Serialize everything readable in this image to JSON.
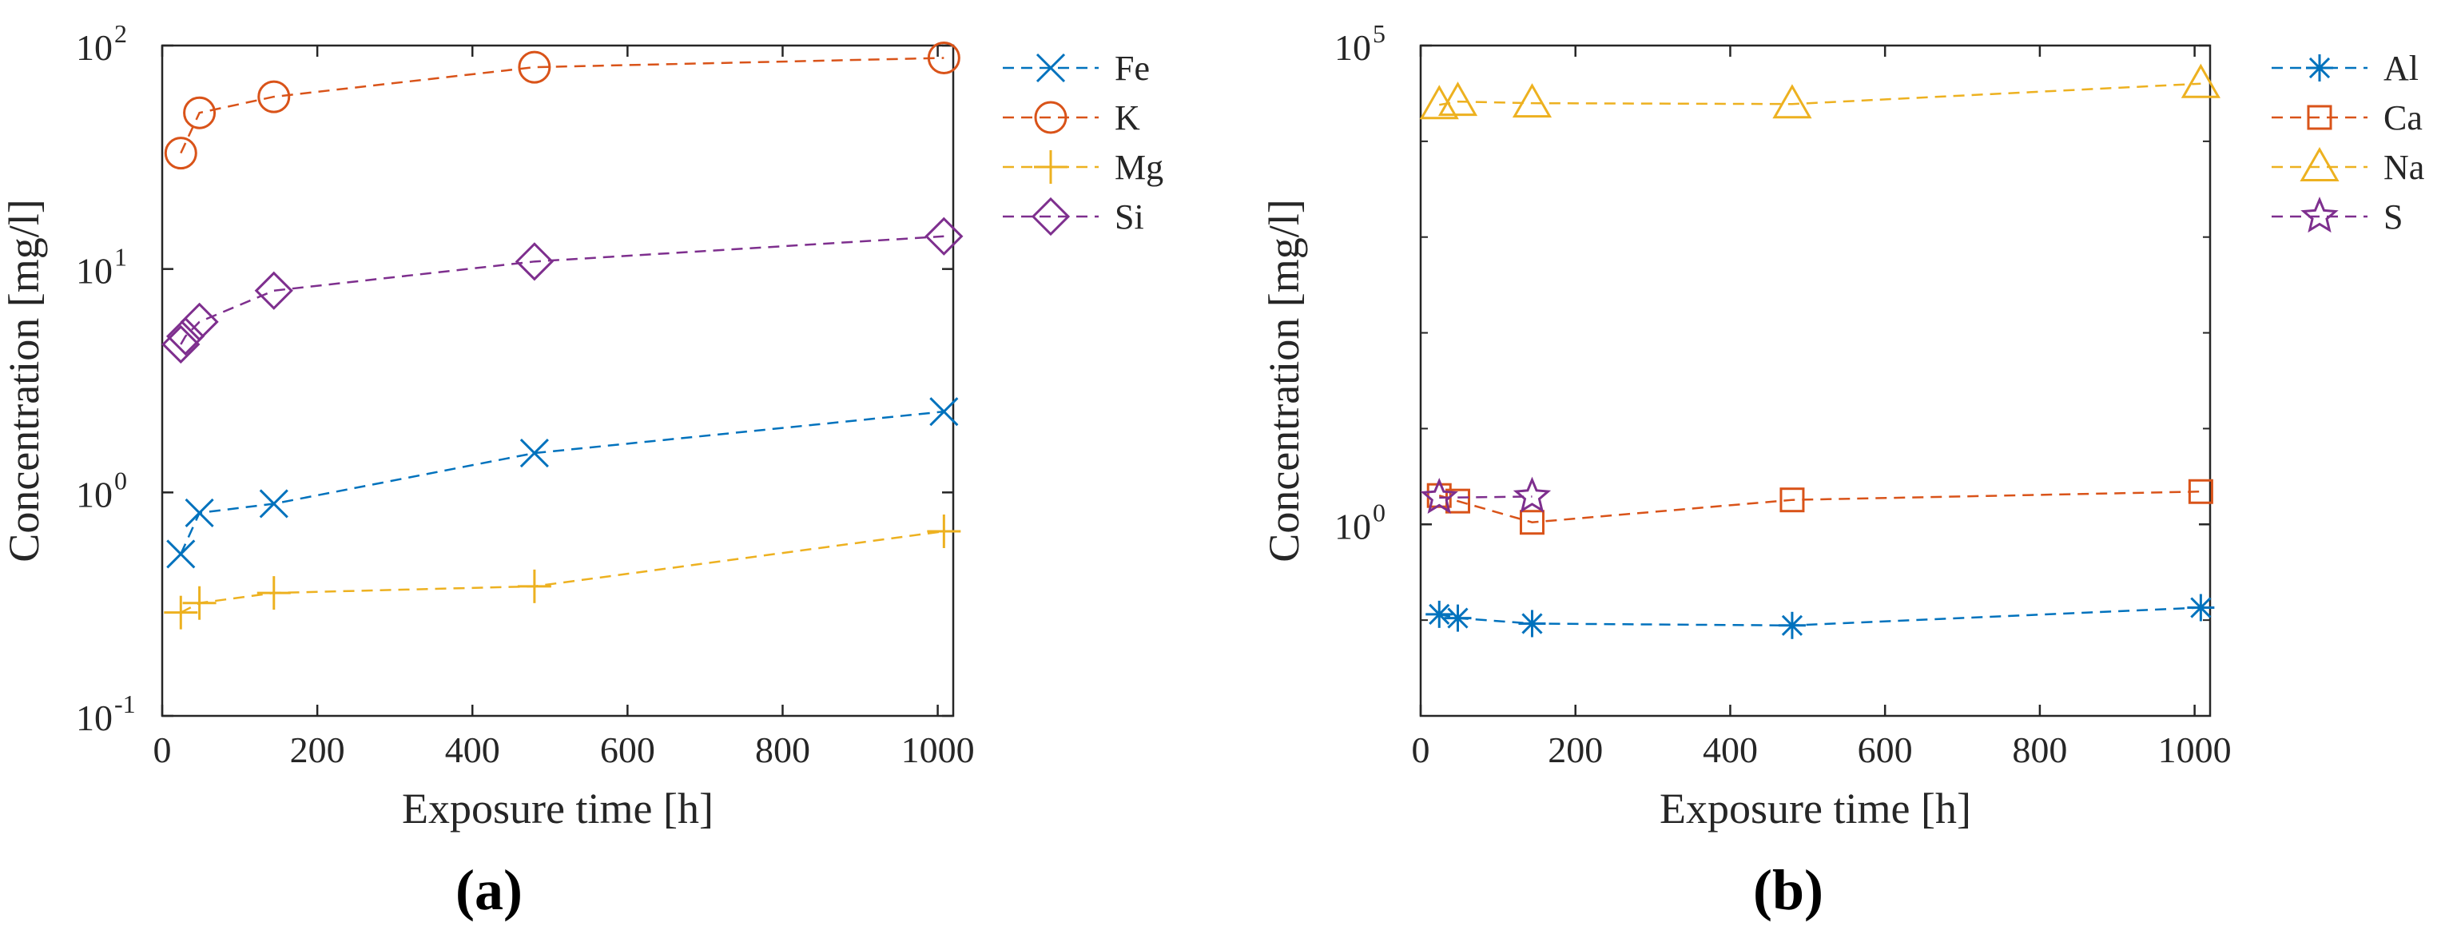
{
  "chart_data": [
    {
      "panel": "(a)",
      "type": "line",
      "scale_y": "log",
      "xlabel": "Exposure time [h]",
      "ylabel": "Concentration [mg/l]",
      "xlim": [
        0,
        1020
      ],
      "ylim": [
        0.1,
        100
      ],
      "x_ticks": [
        {
          "value": 0,
          "label": "0"
        },
        {
          "value": 200,
          "label": "200"
        },
        {
          "value": 400,
          "label": "400"
        },
        {
          "value": 600,
          "label": "600"
        },
        {
          "value": 800,
          "label": "800"
        },
        {
          "value": 1000,
          "label": "1000"
        }
      ],
      "y_ticks": [
        {
          "value": 0.1,
          "base": "10",
          "exp": "-1"
        },
        {
          "value": 1,
          "base": "10",
          "exp": "0"
        },
        {
          "value": 10,
          "base": "10",
          "exp": "1"
        },
        {
          "value": 100,
          "base": "10",
          "exp": "2"
        }
      ],
      "legend_position": "outside-right-top",
      "series": [
        {
          "name": "Fe",
          "color": "#0072BD",
          "marker": "x",
          "points": [
            [
              24,
              0.53
            ],
            [
              48,
              0.81
            ],
            [
              144,
              0.89
            ],
            [
              480,
              1.5
            ],
            [
              1008,
              2.3
            ]
          ]
        },
        {
          "name": "K",
          "color": "#D95319",
          "marker": "circle",
          "points": [
            [
              24,
              33
            ],
            [
              48,
              50
            ],
            [
              144,
              59
            ],
            [
              480,
              80
            ],
            [
              1008,
              88
            ]
          ]
        },
        {
          "name": "Mg",
          "color": "#EDB120",
          "marker": "plus",
          "points": [
            [
              24,
              0.29
            ],
            [
              48,
              0.32
            ],
            [
              144,
              0.355
            ],
            [
              480,
              0.38
            ],
            [
              1008,
              0.67
            ]
          ]
        },
        {
          "name": "Si",
          "color": "#7E2F8E",
          "marker": "diamond",
          "points": [
            [
              24,
              4.6
            ],
            [
              30,
              5.0
            ],
            [
              48,
              5.8
            ],
            [
              144,
              8.0
            ],
            [
              480,
              10.8
            ],
            [
              1008,
              14
            ]
          ]
        }
      ]
    },
    {
      "panel": "(b)",
      "type": "line",
      "scale_y": "log",
      "xlabel": "Exposure time [h]",
      "ylabel": "Concentration [mg/l]",
      "xlim": [
        0,
        1020
      ],
      "ylim": [
        0.01,
        100000
      ],
      "x_ticks": [
        {
          "value": 0,
          "label": "0"
        },
        {
          "value": 200,
          "label": "200"
        },
        {
          "value": 400,
          "label": "400"
        },
        {
          "value": 600,
          "label": "600"
        },
        {
          "value": 800,
          "label": "800"
        },
        {
          "value": 1000,
          "label": "1000"
        }
      ],
      "y_ticks": [
        {
          "value": 1,
          "base": "10",
          "exp": "0"
        },
        {
          "value": 100000,
          "base": "10",
          "exp": "5"
        }
      ],
      "legend_position": "outside-right-top",
      "series": [
        {
          "name": "Al",
          "color": "#0072BD",
          "marker": "asterisk",
          "points": [
            [
              24,
              0.115
            ],
            [
              48,
              0.105
            ],
            [
              144,
              0.092
            ],
            [
              480,
              0.088
            ],
            [
              1008,
              0.135
            ]
          ]
        },
        {
          "name": "Ca",
          "color": "#D95319",
          "marker": "square",
          "points": [
            [
              24,
              2.0
            ],
            [
              48,
              1.75
            ],
            [
              144,
              1.05
            ],
            [
              480,
              1.8
            ],
            [
              1008,
              2.2
            ]
          ]
        },
        {
          "name": "Na",
          "color": "#EDB120",
          "marker": "triangle",
          "points": [
            [
              24,
              24000
            ],
            [
              48,
              26000
            ],
            [
              144,
              25000
            ],
            [
              480,
              24500
            ],
            [
              1008,
              40000
            ]
          ]
        },
        {
          "name": "S",
          "color": "#7E2F8E",
          "marker": "star",
          "points": [
            [
              24,
              1.9
            ],
            [
              144,
              1.95
            ]
          ]
        }
      ]
    }
  ]
}
